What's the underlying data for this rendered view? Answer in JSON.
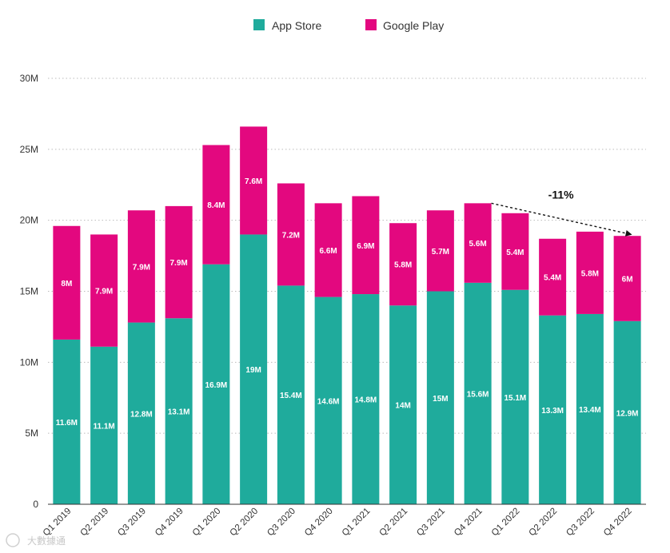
{
  "chart_data": {
    "type": "bar",
    "stacked": true,
    "categories": [
      "Q1 2019",
      "Q2 2019",
      "Q3 2019",
      "Q4 2019",
      "Q1 2020",
      "Q2 2020",
      "Q3 2020",
      "Q4 2020",
      "Q1 2021",
      "Q2 2021",
      "Q3 2021",
      "Q4 2021",
      "Q1 2022",
      "Q2 2022",
      "Q3 2022",
      "Q4 2022"
    ],
    "series": [
      {
        "name": "App Store",
        "color": "#1fab9c",
        "values": [
          11.6,
          11.1,
          12.8,
          13.1,
          16.9,
          19,
          15.4,
          14.6,
          14.8,
          14,
          15,
          15.6,
          15.1,
          13.3,
          13.4,
          12.9
        ],
        "labels": [
          "11.6M",
          "11.1M",
          "12.8M",
          "13.1M",
          "16.9M",
          "19M",
          "15.4M",
          "14.6M",
          "14.8M",
          "14M",
          "15M",
          "15.6M",
          "15.1M",
          "13.3M",
          "13.4M",
          "12.9M"
        ]
      },
      {
        "name": "Google Play",
        "color": "#e3087f",
        "values": [
          8,
          7.9,
          7.9,
          7.9,
          8.4,
          7.6,
          7.2,
          6.6,
          6.9,
          5.8,
          5.7,
          5.6,
          5.4,
          5.4,
          5.8,
          6
        ],
        "labels": [
          "8M",
          "7.9M",
          "7.9M",
          "7.9M",
          "8.4M",
          "7.6M",
          "7.2M",
          "6.6M",
          "6.9M",
          "5.8M",
          "5.7M",
          "5.6M",
          "5.4M",
          "5.4M",
          "5.8M",
          "6M"
        ]
      }
    ],
    "y_ticks": [
      0,
      5,
      10,
      15,
      20,
      25,
      30
    ],
    "y_tick_labels": [
      "0",
      "5M",
      "10M",
      "15M",
      "20M",
      "25M",
      "30M"
    ],
    "ylim": [
      0,
      30
    ],
    "grid": "dotted-horizontal",
    "legend": "top-center",
    "annotation": {
      "text": "-11%",
      "from_category": "Q4 2021",
      "to_category": "Q4 2022",
      "style": "dashed-arrow"
    }
  },
  "watermark": {
    "text": "大數據通"
  }
}
